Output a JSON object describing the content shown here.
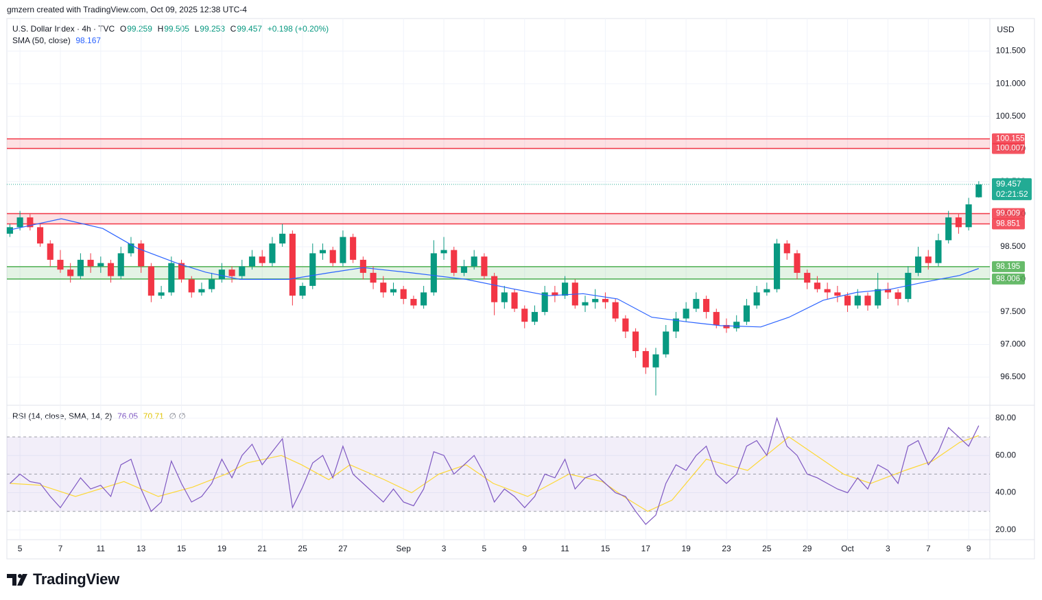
{
  "chart_data": {
    "type": "candlestick",
    "header": "gmzern created with TradingView.com, Oct 09, 2025 12:38 UTC-4",
    "title": "U.S. Dollar Index · 4h · TVC",
    "ohlc_labels": [
      "O",
      "H",
      "L",
      "C"
    ],
    "change": "+0.198 (+0.20%)",
    "currency": "USD",
    "countdown": "02:21:52",
    "brand": "TradingView",
    "up_color": "#089981",
    "down_color": "#f23645",
    "last_color": "#22ab94",
    "grid": true,
    "candles": [
      [
        98.7,
        98.85,
        98.65,
        98.8
      ],
      [
        98.8,
        99.05,
        98.75,
        98.95
      ],
      [
        98.95,
        99.0,
        98.75,
        98.8
      ],
      [
        98.8,
        98.85,
        98.5,
        98.55
      ],
      [
        98.55,
        98.6,
        98.2,
        98.3
      ],
      [
        98.3,
        98.45,
        98.1,
        98.15
      ],
      [
        98.15,
        98.25,
        97.95,
        98.05
      ],
      [
        98.05,
        98.4,
        98.0,
        98.3
      ],
      [
        98.3,
        98.4,
        98.1,
        98.2
      ],
      [
        98.2,
        98.35,
        98.1,
        98.25
      ],
      [
        98.25,
        98.3,
        97.95,
        98.05
      ],
      [
        98.05,
        98.5,
        98.0,
        98.4
      ],
      [
        98.4,
        98.65,
        98.35,
        98.55
      ],
      [
        98.55,
        98.6,
        98.1,
        98.2
      ],
      [
        98.2,
        98.25,
        97.65,
        97.75
      ],
      [
        97.75,
        97.9,
        97.7,
        97.8
      ],
      [
        97.8,
        98.35,
        97.75,
        98.25
      ],
      [
        98.25,
        98.3,
        97.95,
        98.0
      ],
      [
        98.0,
        98.05,
        97.72,
        97.8
      ],
      [
        97.8,
        97.95,
        97.75,
        97.85
      ],
      [
        97.85,
        98.1,
        97.8,
        98.0
      ],
      [
        98.0,
        98.25,
        97.95,
        98.15
      ],
      [
        98.15,
        98.2,
        97.95,
        98.05
      ],
      [
        98.05,
        98.3,
        98.0,
        98.2
      ],
      [
        98.2,
        98.45,
        98.15,
        98.35
      ],
      [
        98.35,
        98.45,
        98.2,
        98.25
      ],
      [
        98.25,
        98.65,
        98.2,
        98.55
      ],
      [
        98.55,
        98.85,
        98.5,
        98.7
      ],
      [
        98.7,
        98.75,
        97.6,
        97.75
      ],
      [
        97.75,
        97.95,
        97.7,
        97.9
      ],
      [
        97.9,
        98.55,
        97.85,
        98.4
      ],
      [
        98.4,
        98.55,
        98.3,
        98.45
      ],
      [
        98.45,
        98.5,
        98.2,
        98.25
      ],
      [
        98.25,
        98.75,
        98.2,
        98.65
      ],
      [
        98.65,
        98.7,
        98.25,
        98.3
      ],
      [
        98.3,
        98.35,
        98.0,
        98.1
      ],
      [
        98.1,
        98.2,
        97.85,
        97.95
      ],
      [
        97.95,
        98.05,
        97.72,
        97.8
      ],
      [
        97.8,
        97.95,
        97.75,
        97.85
      ],
      [
        97.85,
        97.9,
        97.62,
        97.7
      ],
      [
        97.7,
        97.75,
        97.55,
        97.6
      ],
      [
        97.6,
        97.9,
        97.55,
        97.8
      ],
      [
        97.8,
        98.6,
        97.75,
        98.4
      ],
      [
        98.4,
        98.65,
        98.3,
        98.45
      ],
      [
        98.45,
        98.5,
        98.05,
        98.1
      ],
      [
        98.1,
        98.3,
        98.05,
        98.2
      ],
      [
        98.2,
        98.45,
        98.15,
        98.35
      ],
      [
        98.35,
        98.4,
        98.0,
        98.05
      ],
      [
        98.05,
        98.1,
        97.45,
        97.65
      ],
      [
        97.65,
        97.9,
        97.55,
        97.8
      ],
      [
        97.8,
        97.85,
        97.5,
        97.55
      ],
      [
        97.55,
        97.6,
        97.25,
        97.35
      ],
      [
        97.35,
        97.6,
        97.3,
        97.5
      ],
      [
        97.5,
        97.9,
        97.45,
        97.8
      ],
      [
        97.8,
        97.9,
        97.65,
        97.75
      ],
      [
        97.75,
        98.05,
        97.7,
        97.95
      ],
      [
        97.95,
        98.0,
        97.55,
        97.6
      ],
      [
        97.6,
        97.75,
        97.5,
        97.65
      ],
      [
        97.65,
        97.85,
        97.55,
        97.7
      ],
      [
        97.7,
        97.8,
        97.55,
        97.65
      ],
      [
        97.65,
        97.7,
        97.35,
        97.4
      ],
      [
        97.4,
        97.45,
        97.1,
        97.2
      ],
      [
        97.2,
        97.25,
        96.8,
        96.9
      ],
      [
        96.9,
        96.95,
        96.55,
        96.65
      ],
      [
        96.65,
        96.95,
        96.22,
        96.85
      ],
      [
        96.85,
        97.3,
        96.8,
        97.2
      ],
      [
        97.2,
        97.5,
        97.1,
        97.4
      ],
      [
        97.4,
        97.65,
        97.35,
        97.55
      ],
      [
        97.55,
        97.8,
        97.5,
        97.7
      ],
      [
        97.7,
        97.75,
        97.4,
        97.5
      ],
      [
        97.5,
        97.55,
        97.25,
        97.3
      ],
      [
        97.3,
        97.4,
        97.18,
        97.25
      ],
      [
        97.25,
        97.45,
        97.2,
        97.35
      ],
      [
        97.35,
        97.7,
        97.3,
        97.6
      ],
      [
        97.6,
        97.9,
        97.55,
        97.8
      ],
      [
        97.8,
        97.95,
        97.75,
        97.85
      ],
      [
        97.85,
        98.62,
        97.8,
        98.55
      ],
      [
        98.55,
        98.6,
        98.3,
        98.4
      ],
      [
        98.4,
        98.45,
        98.0,
        98.1
      ],
      [
        98.1,
        98.15,
        97.85,
        97.95
      ],
      [
        97.95,
        98.05,
        97.8,
        97.85
      ],
      [
        97.85,
        97.95,
        97.7,
        97.8
      ],
      [
        97.8,
        97.9,
        97.65,
        97.75
      ],
      [
        97.75,
        97.8,
        97.5,
        97.6
      ],
      [
        97.6,
        97.85,
        97.55,
        97.75
      ],
      [
        97.75,
        97.8,
        97.52,
        97.6
      ],
      [
        97.6,
        98.1,
        97.55,
        97.85
      ],
      [
        97.85,
        97.95,
        97.7,
        97.8
      ],
      [
        97.8,
        97.85,
        97.6,
        97.7
      ],
      [
        97.7,
        98.2,
        97.65,
        98.1
      ],
      [
        98.1,
        98.5,
        98.05,
        98.35
      ],
      [
        98.35,
        98.45,
        98.15,
        98.25
      ],
      [
        98.25,
        98.7,
        98.2,
        98.6
      ],
      [
        98.6,
        99.05,
        98.55,
        98.95
      ],
      [
        98.95,
        99.0,
        98.7,
        98.8
      ],
      [
        98.8,
        99.25,
        98.75,
        99.15
      ],
      [
        99.259,
        99.505,
        99.253,
        99.457
      ]
    ],
    "xlim": [
      -0.3,
      97.1
    ],
    "xticks": [
      {
        "value": 1,
        "label": "5"
      },
      {
        "value": 5,
        "label": "7"
      },
      {
        "value": 9,
        "label": "11"
      },
      {
        "value": 13,
        "label": "13"
      },
      {
        "value": 17,
        "label": "15"
      },
      {
        "value": 21,
        "label": "19"
      },
      {
        "value": 25,
        "label": "21"
      },
      {
        "value": 29,
        "label": "25"
      },
      {
        "value": 33,
        "label": "27"
      },
      {
        "value": 39,
        "label": "Sep"
      },
      {
        "value": 43,
        "label": "3"
      },
      {
        "value": 47,
        "label": "5"
      },
      {
        "value": 51,
        "label": "9"
      },
      {
        "value": 55,
        "label": "11"
      },
      {
        "value": 59,
        "label": "15"
      },
      {
        "value": 63,
        "label": "17"
      },
      {
        "value": 67,
        "label": "19"
      },
      {
        "value": 71,
        "label": "23"
      },
      {
        "value": 75,
        "label": "25"
      },
      {
        "value": 79,
        "label": "29"
      },
      {
        "value": 83,
        "label": "Oct"
      },
      {
        "value": 87,
        "label": "3"
      },
      {
        "value": 91,
        "label": "7"
      },
      {
        "value": 95,
        "label": "9"
      }
    ],
    "ylim": [
      96.08,
      102.0
    ],
    "yticks": [
      {
        "value": 96.5,
        "label": "96.500"
      },
      {
        "value": 97,
        "label": "97.000"
      },
      {
        "value": 97.5,
        "label": "97.500"
      },
      {
        "value": 98,
        "label": "98.000"
      },
      {
        "value": 98.5,
        "label": "98.500"
      },
      {
        "value": 99,
        "label": "99.000"
      },
      {
        "value": 99.5,
        "label": "99.500"
      },
      {
        "value": 100,
        "label": "100.000"
      },
      {
        "value": 100.5,
        "label": "100.500"
      },
      {
        "value": 101,
        "label": "101.000"
      },
      {
        "value": 101.5,
        "label": "101.500"
      }
    ],
    "zones": [
      {
        "low": 100.007,
        "high": 100.155,
        "color": "#f23645"
      },
      {
        "low": 98.851,
        "high": 99.009,
        "color": "#f23645"
      },
      {
        "low": 98.006,
        "high": 98.195,
        "color": "#4caf50"
      }
    ],
    "sma": {
      "name": "SMA (50, close)",
      "color": "#2962ff",
      "x": [
        0.05,
        5.1,
        9.2,
        12.6,
        16.7,
        19.4,
        22.8,
        27.6,
        31.6,
        35.0,
        39.8,
        45.2,
        50.0,
        53.4,
        56.8,
        60.2,
        63.6,
        67.0,
        70.4,
        74.4,
        77.2,
        80.6,
        83.9,
        87.3,
        90.7,
        94.1,
        96
      ],
      "values": [
        98.76,
        98.93,
        98.78,
        98.48,
        98.24,
        98.11,
        98.0,
        98.0,
        98.1,
        98.18,
        98.1,
        98.0,
        97.85,
        97.75,
        97.78,
        97.7,
        97.42,
        97.35,
        97.29,
        97.27,
        97.42,
        97.68,
        97.8,
        97.85,
        97.96,
        98.06,
        98.167
      ]
    },
    "rsi": {
      "name": "RSI (14, close, SMA, 14, 2)",
      "color": "#7e57c2",
      "extra": "∅ ∅",
      "values": [
        45,
        50,
        46,
        45,
        38,
        32,
        40,
        48,
        42,
        44,
        38,
        55,
        58,
        42,
        30,
        35,
        57,
        45,
        35,
        38,
        45,
        58,
        48,
        60,
        66,
        55,
        62,
        69,
        32,
        43,
        56,
        60,
        48,
        65,
        50,
        45,
        40,
        35,
        42,
        35,
        33,
        42,
        62,
        60,
        50,
        55,
        60,
        50,
        35,
        42,
        38,
        32,
        38,
        50,
        48,
        58,
        42,
        48,
        50,
        45,
        40,
        38,
        30,
        23,
        28,
        45,
        55,
        52,
        60,
        65,
        50,
        45,
        50,
        65,
        68,
        60,
        80,
        65,
        60,
        50,
        48,
        45,
        42,
        40,
        48,
        42,
        55,
        52,
        45,
        65,
        68,
        55,
        62,
        75,
        70,
        65,
        76.05
      ],
      "ylim": [
        14.8,
        86.6
      ],
      "yticks": [
        {
          "value": 20,
          "label": "20.00"
        },
        {
          "value": 40,
          "label": "40.00"
        },
        {
          "value": 60,
          "label": "60.00"
        },
        {
          "value": 80,
          "label": "80.00"
        }
      ],
      "levels": [
        30,
        50,
        70
      ],
      "band_color": "#7e57c2",
      "sma": {
        "color": "#fdd835",
        "x": [
          0.05,
          3.1,
          6.5,
          11.3,
          14.7,
          18.1,
          21.4,
          23.5,
          26.9,
          28.9,
          31.6,
          33.7,
          37.1,
          39.8,
          42.5,
          45.2,
          47.9,
          51.3,
          55.4,
          58.7,
          60.8,
          63.2,
          65.6,
          69.0,
          71.0,
          73.1,
          77.2,
          79.9,
          82.6,
          85.3,
          88.7,
          91.4,
          94.1,
          96
        ],
        "values": [
          45,
          44,
          38,
          46,
          38,
          43,
          50,
          56,
          60,
          55,
          47,
          55,
          47,
          40,
          50,
          55,
          45,
          38,
          50,
          46,
          38,
          30,
          36,
          58,
          55,
          52,
          70,
          60,
          50,
          45,
          52,
          57,
          67,
          70.71
        ]
      }
    }
  }
}
